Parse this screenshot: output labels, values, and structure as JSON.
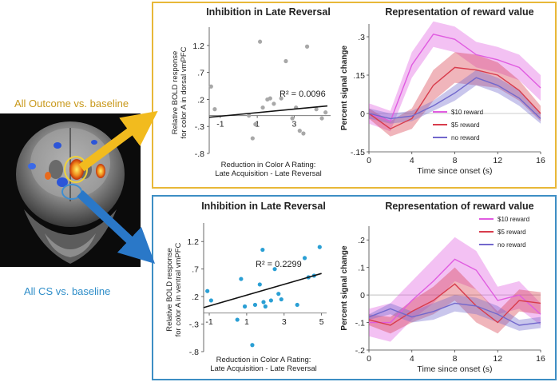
{
  "labels": {
    "outcome": "All Outcome vs. baseline",
    "cs": "All CS vs. baseline"
  },
  "colors": {
    "top_border": "#e8b838",
    "bottom_border": "#3d8ec4",
    "outcome_label": "#c8981a",
    "cs_label": "#2f8ec9",
    "scatter_top_points": "#a8a8a8",
    "scatter_bottom_points": "#2a9fd4",
    "reward10": "#e05ce0",
    "reward5": "#d83c4c",
    "reward0": "#7268cc"
  },
  "chart_data": [
    {
      "type": "scatter",
      "id": "scatter-top",
      "title": "Inhibition in Late Reversal",
      "ylabel": [
        "Relative BOLD response",
        "for color A in dorsal vmPFC"
      ],
      "xlabel": [
        "Reduction in Color A Rating:",
        "Late Acquisition - Late Reversal"
      ],
      "xlim": [
        -1.6,
        4.8
      ],
      "ylim": [
        -0.8,
        1.45
      ],
      "xticks": [
        -1,
        1,
        3
      ],
      "yticks": [
        -0.8,
        -0.3,
        0.2,
        0.7,
        1.2
      ],
      "points": [
        [
          -1.5,
          0.44
        ],
        [
          -1.3,
          0.02
        ],
        [
          0.55,
          -0.1
        ],
        [
          0.75,
          -0.52
        ],
        [
          0.9,
          -0.26
        ],
        [
          1.15,
          1.27
        ],
        [
          1.3,
          0.05
        ],
        [
          1.55,
          0.2
        ],
        [
          1.7,
          0.22
        ],
        [
          1.9,
          0.12
        ],
        [
          2.3,
          0.22
        ],
        [
          2.55,
          0.91
        ],
        [
          2.9,
          -0.15
        ],
        [
          3.1,
          0.05
        ],
        [
          3.3,
          -0.38
        ],
        [
          3.5,
          -0.43
        ],
        [
          3.7,
          1.18
        ],
        [
          4.2,
          0.02
        ],
        [
          4.5,
          -0.15
        ],
        [
          4.7,
          -0.04
        ]
      ],
      "fit": {
        "x": [
          -1.6,
          4.8
        ],
        "y": [
          -0.13,
          0.08
        ]
      },
      "r2": "R² = 0.0096"
    },
    {
      "type": "line",
      "id": "timecourse-top",
      "title": "Representation of reward value",
      "ylabel": "Percent signal change",
      "xlabel": "Time since onset (s)",
      "xlim": [
        0,
        16
      ],
      "ylim": [
        -0.15,
        0.35
      ],
      "xticks": [
        0,
        4,
        8,
        12,
        16
      ],
      "yticks": [
        -0.15,
        0,
        0.15,
        0.3
      ],
      "x": [
        0,
        2,
        4,
        6,
        8,
        10,
        12,
        14,
        16
      ],
      "series": [
        {
          "name": "$10 reward",
          "key": "reward10",
          "values": [
            0.0,
            -0.03,
            0.19,
            0.31,
            0.29,
            0.23,
            0.21,
            0.18,
            0.1
          ],
          "err": [
            0.04,
            0.04,
            0.05,
            0.05,
            0.05,
            0.05,
            0.05,
            0.05,
            0.05
          ]
        },
        {
          "name": "$5 reward",
          "key": "reward5",
          "values": [
            0.0,
            -0.06,
            -0.02,
            0.11,
            0.18,
            0.17,
            0.15,
            0.09,
            0.0
          ],
          "err": [
            0.02,
            0.03,
            0.04,
            0.06,
            0.06,
            0.06,
            0.05,
            0.04,
            0.03
          ]
        },
        {
          "name": "no reward",
          "key": "reward0",
          "values": [
            0.0,
            -0.02,
            -0.01,
            0.03,
            0.08,
            0.14,
            0.11,
            0.06,
            -0.02
          ],
          "err": [
            0.02,
            0.02,
            0.02,
            0.02,
            0.03,
            0.03,
            0.03,
            0.03,
            0.02
          ]
        }
      ],
      "legend_position": "right"
    },
    {
      "type": "scatter",
      "id": "scatter-bottom",
      "title": "Inhibition in Late Reversal",
      "ylabel": [
        "Relative BOLD response",
        "for color A in ventral vmPFC"
      ],
      "xlabel": [
        "Reduction in Color A Rating:",
        "Late Acquisition - Late Reversal"
      ],
      "xlim": [
        -1.3,
        5.1
      ],
      "ylim": [
        -0.8,
        1.45
      ],
      "xticks": [
        -1,
        1,
        3,
        5
      ],
      "yticks": [
        -0.8,
        -0.3,
        0.2,
        0.7,
        1.2
      ],
      "points": [
        [
          -1.1,
          0.3
        ],
        [
          -0.9,
          0.13
        ],
        [
          0.5,
          -0.22
        ],
        [
          0.7,
          0.52
        ],
        [
          0.9,
          0.02
        ],
        [
          1.3,
          -0.68
        ],
        [
          1.45,
          0.05
        ],
        [
          1.7,
          0.42
        ],
        [
          1.85,
          1.05
        ],
        [
          1.9,
          0.1
        ],
        [
          2.0,
          0.02
        ],
        [
          2.3,
          0.13
        ],
        [
          2.5,
          0.7
        ],
        [
          2.7,
          0.25
        ],
        [
          2.85,
          0.15
        ],
        [
          3.7,
          0.05
        ],
        [
          4.1,
          0.9
        ],
        [
          4.3,
          0.55
        ],
        [
          4.6,
          0.58
        ],
        [
          4.9,
          1.1
        ]
      ],
      "fit": {
        "x": [
          -1.3,
          5.0
        ],
        "y": [
          0.0,
          0.62
        ]
      },
      "r2": "R² = 0.2299"
    },
    {
      "type": "line",
      "id": "timecourse-bottom",
      "title": "Representation of reward value",
      "ylabel": "Percent signal change",
      "xlabel": "Time since onset (s)",
      "xlim": [
        0,
        16
      ],
      "ylim": [
        -0.2,
        0.25
      ],
      "xticks": [
        0,
        4,
        8,
        12,
        16
      ],
      "yticks": [
        -0.2,
        -0.1,
        0,
        0.1,
        0.2
      ],
      "x": [
        0,
        2,
        4,
        6,
        8,
        10,
        12,
        14,
        16
      ],
      "series": [
        {
          "name": "$10 reward",
          "key": "reward10",
          "values": [
            -0.1,
            -0.1,
            -0.02,
            0.05,
            0.13,
            0.09,
            -0.02,
            0.0,
            -0.07
          ],
          "err": [
            0.05,
            0.07,
            0.07,
            0.08,
            0.08,
            0.07,
            0.05,
            0.05,
            0.04
          ]
        },
        {
          "name": "$5 reward",
          "key": "reward5",
          "values": [
            -0.09,
            -0.11,
            -0.06,
            -0.02,
            0.04,
            -0.04,
            -0.1,
            -0.02,
            -0.03
          ],
          "err": [
            0.02,
            0.03,
            0.04,
            0.05,
            0.06,
            0.06,
            0.04,
            0.04,
            0.04
          ]
        },
        {
          "name": "no reward",
          "key": "reward0",
          "values": [
            -0.08,
            -0.05,
            -0.08,
            -0.06,
            -0.03,
            -0.04,
            -0.07,
            -0.11,
            -0.1
          ],
          "err": [
            0.01,
            0.02,
            0.02,
            0.03,
            0.03,
            0.03,
            0.03,
            0.02,
            0.02
          ]
        }
      ],
      "legend_position": "top-right"
    }
  ]
}
